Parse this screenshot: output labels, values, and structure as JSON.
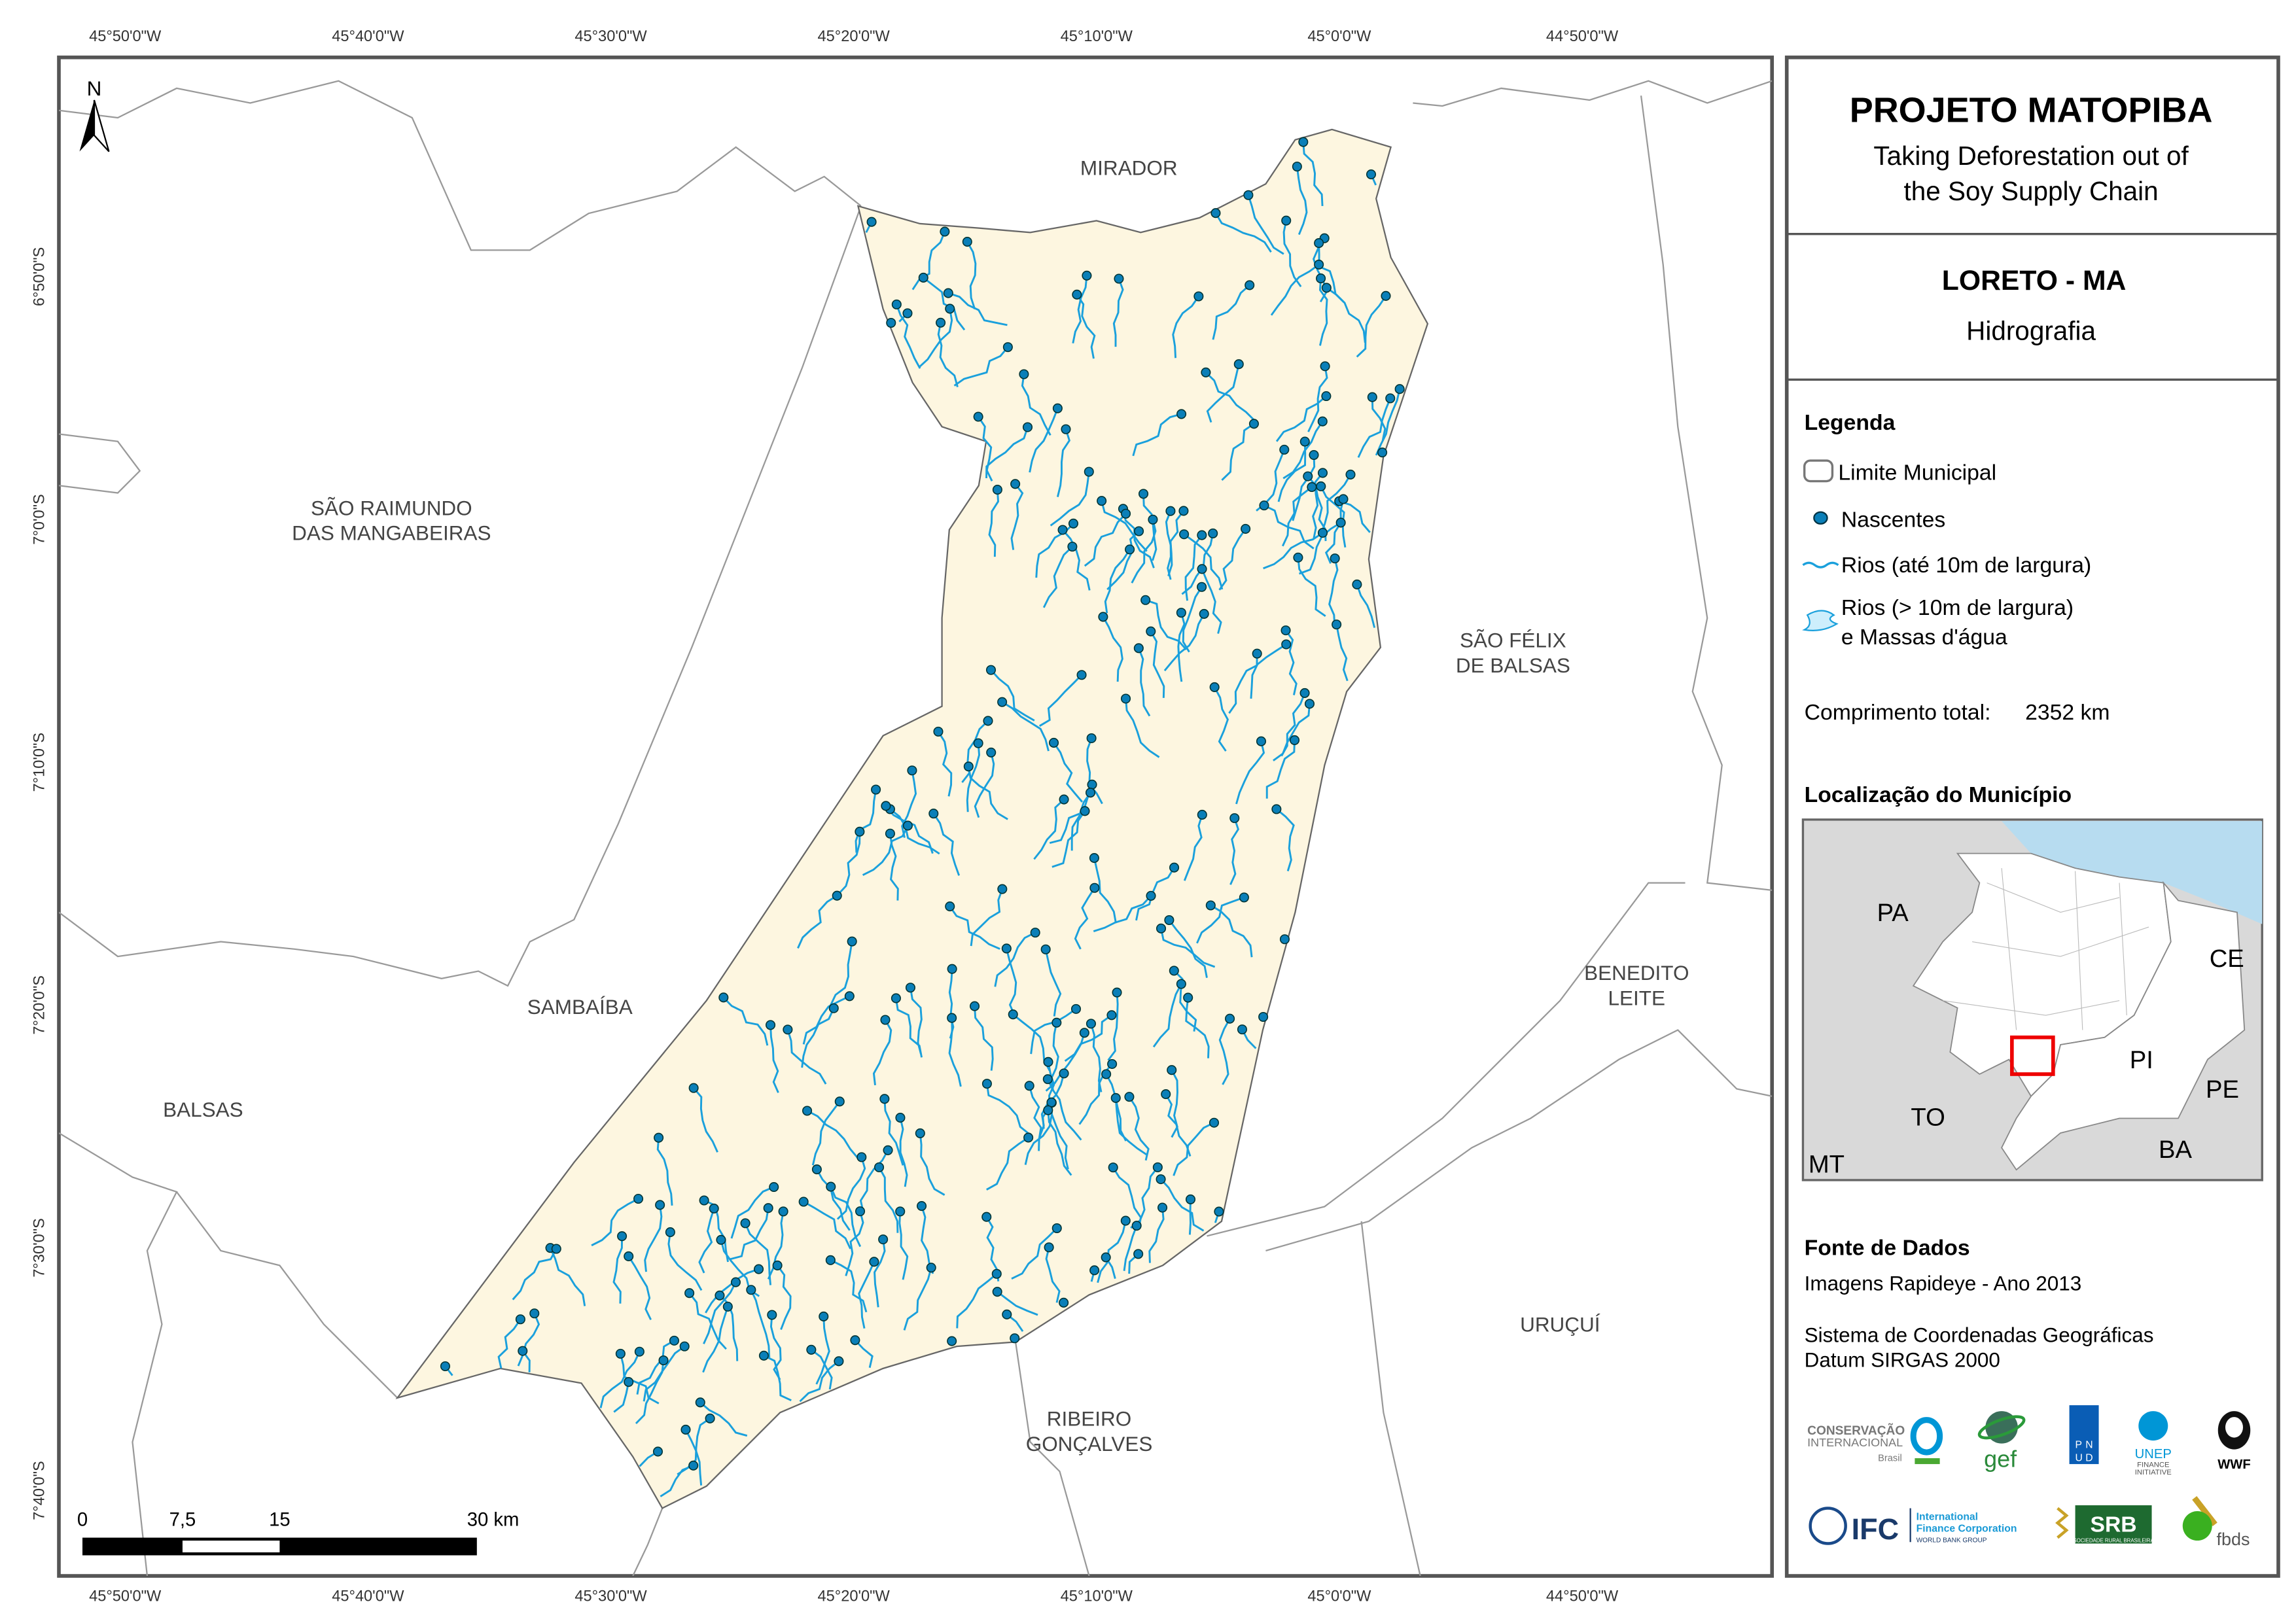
{
  "map": {
    "north_label": "N",
    "lon_ticks": [
      "45°50'0\"W",
      "45°40'0\"W",
      "45°30'0\"W",
      "45°20'0\"W",
      "45°10'0\"W",
      "45°0'0\"W",
      "44°50'0\"W"
    ],
    "lat_ticks": [
      "6°50'0\"S",
      "7°0'0\"S",
      "7°10'0\"S",
      "7°20'0\"S",
      "7°30'0\"S",
      "7°40'0\"S"
    ],
    "municipalities": {
      "mirador": [
        "MIRADOR"
      ],
      "sao_raimundo": [
        "SÃO RAIMUNDO",
        "DAS MANGABEIRAS"
      ],
      "sao_felix": [
        "SÃO FÉLIX",
        "DE BALSAS"
      ],
      "sambaiba": [
        "SAMBAÍBA"
      ],
      "benedito": [
        "BENEDITO",
        "LEITE"
      ],
      "balsas": [
        "BALSAS"
      ],
      "uruçui": [
        "URUÇUÍ"
      ],
      "ribeiro": [
        "RIBEIRO",
        "GONÇALVES"
      ]
    },
    "scale_labels": [
      "0",
      "7,5",
      "15",
      "30 km"
    ],
    "colors": {
      "municipality_fill": "#fdf6e0",
      "river": "#1aa0dc",
      "spring": "#0a7fb8",
      "boundary": "#888888"
    }
  },
  "panel": {
    "title": "PROJETO MATOPIBA",
    "subtitle_1": "Taking Deforestation out of",
    "subtitle_2": "the Soy Supply Chain",
    "place": "LORETO - MA",
    "theme": "Hidrografia",
    "legend_title": "Legenda",
    "legend": {
      "limite": "Limite Municipal",
      "nascentes": "Nascentes",
      "rios_small": "Rios (até 10m de largura)",
      "rios_large_1": "Rios (> 10m de largura)",
      "rios_large_2": "e Massas d'água"
    },
    "total_length_label": "Comprimento total:",
    "total_length_value": "2352 km",
    "location_title": "Localização do Município",
    "inset_labels": [
      "PA",
      "CE",
      "PI",
      "PE",
      "TO",
      "BA",
      "MT"
    ],
    "sources_title": "Fonte de Dados",
    "source_1": "Imagens Rapideye - Ano 2013",
    "source_2": "Sistema de Coordenadas Geográficas",
    "source_3": "Datum SIRGAS 2000",
    "logos": {
      "ci": [
        "CONSERVAÇÃO",
        "INTERNACIONAL",
        "Brasil"
      ],
      "gef": "gef",
      "pnud": [
        "P",
        "N",
        "U",
        "D"
      ],
      "unep": [
        "UNEP",
        "FINANCE",
        "INITIATIVE"
      ],
      "wwf": "WWF",
      "ifc": [
        "IFC",
        "International",
        "Finance Corporation",
        "WORLD BANK GROUP"
      ],
      "srb": [
        "SRB",
        "SOCIEDADE RURAL BRASILEIRA"
      ],
      "fbds": "fbds"
    }
  }
}
